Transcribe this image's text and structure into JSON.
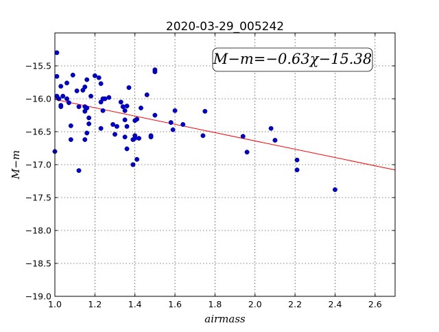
{
  "chart_data": {
    "type": "scatter",
    "title": "2020-03-29_005242",
    "xlabel": "airmass",
    "ylabel": "M−m",
    "xlim": [
      1.0,
      2.7
    ],
    "ylim": [
      -19.0,
      -15.0
    ],
    "y_inverted": true,
    "xticks": [
      1.0,
      1.2,
      1.4,
      1.6,
      1.8,
      2.0,
      2.2,
      2.4,
      2.6
    ],
    "xtick_labels": [
      "1.0",
      "1.2",
      "1.4",
      "1.6",
      "1.8",
      "2.0",
      "2.2",
      "2.4",
      "2.6"
    ],
    "yticks": [
      -15.5,
      -16.0,
      -16.5,
      -17.0,
      -17.5,
      -18.0,
      -18.5,
      -19.0
    ],
    "ytick_labels": [
      "−15.5",
      "−16.0",
      "−16.5",
      "−17.0",
      "−17.5",
      "−18.0",
      "−18.5",
      "−19.0"
    ],
    "grid": true,
    "annotation": "M−m=−0.63χ−15.38",
    "annotation_position": "top-right",
    "fit": {
      "slope": -0.63,
      "intercept": -15.38,
      "color": "#ff0000"
    },
    "point_color": "#0000cc",
    "points": [
      [
        1.0,
        -16.8
      ],
      [
        1.01,
        -15.96
      ],
      [
        1.01,
        -15.3
      ],
      [
        1.01,
        -15.66
      ],
      [
        1.02,
        -16.0
      ],
      [
        1.03,
        -15.81
      ],
      [
        1.03,
        -16.1
      ],
      [
        1.03,
        -16.12
      ],
      [
        1.04,
        -15.96
      ],
      [
        1.06,
        -15.76
      ],
      [
        1.06,
        -16.0
      ],
      [
        1.07,
        -16.06
      ],
      [
        1.08,
        -16.62
      ],
      [
        1.08,
        -16.41
      ],
      [
        1.09,
        -15.64
      ],
      [
        1.11,
        -15.88
      ],
      [
        1.12,
        -16.12
      ],
      [
        1.12,
        -17.09
      ],
      [
        1.14,
        -15.87
      ],
      [
        1.15,
        -15.82
      ],
      [
        1.15,
        -16.12
      ],
      [
        1.15,
        -16.19
      ],
      [
        1.15,
        -16.62
      ],
      [
        1.16,
        -15.71
      ],
      [
        1.16,
        -16.52
      ],
      [
        1.16,
        -16.14
      ],
      [
        1.17,
        -16.29
      ],
      [
        1.17,
        -16.38
      ],
      [
        1.18,
        -15.96
      ],
      [
        1.2,
        -15.65
      ],
      [
        1.22,
        -15.68
      ],
      [
        1.23,
        -16.05
      ],
      [
        1.23,
        -15.77
      ],
      [
        1.23,
        -16.45
      ],
      [
        1.24,
        -16.18
      ],
      [
        1.24,
        -16.0
      ],
      [
        1.25,
        -16.0
      ],
      [
        1.27,
        -15.98
      ],
      [
        1.29,
        -16.39
      ],
      [
        1.3,
        -16.54
      ],
      [
        1.31,
        -16.42
      ],
      [
        1.33,
        -16.05
      ],
      [
        1.34,
        -16.12
      ],
      [
        1.35,
        -16.32
      ],
      [
        1.35,
        -16.58
      ],
      [
        1.35,
        -16.18
      ],
      [
        1.36,
        -16.11
      ],
      [
        1.36,
        -16.76
      ],
      [
        1.36,
        -16.42
      ],
      [
        1.37,
        -15.83
      ],
      [
        1.39,
        -16.62
      ],
      [
        1.39,
        -17.0
      ],
      [
        1.4,
        -16.56
      ],
      [
        1.4,
        -16.33
      ],
      [
        1.4,
        -16.6
      ],
      [
        1.41,
        -16.31
      ],
      [
        1.41,
        -16.92
      ],
      [
        1.42,
        -16.6
      ],
      [
        1.43,
        -16.14
      ],
      [
        1.46,
        -15.94
      ],
      [
        1.48,
        -16.56
      ],
      [
        1.48,
        -16.58
      ],
      [
        1.5,
        -15.56
      ],
      [
        1.5,
        -15.59
      ],
      [
        1.5,
        -16.25
      ],
      [
        1.58,
        -16.36
      ],
      [
        1.59,
        -16.47
      ],
      [
        1.6,
        -16.18
      ],
      [
        1.64,
        -16.39
      ],
      [
        1.74,
        -16.56
      ],
      [
        1.75,
        -16.19
      ],
      [
        1.94,
        -16.57
      ],
      [
        1.96,
        -16.81
      ],
      [
        2.08,
        -16.45
      ],
      [
        2.1,
        -16.63
      ],
      [
        2.21,
        -16.93
      ],
      [
        2.21,
        -17.08
      ],
      [
        2.4,
        -17.38
      ]
    ]
  }
}
